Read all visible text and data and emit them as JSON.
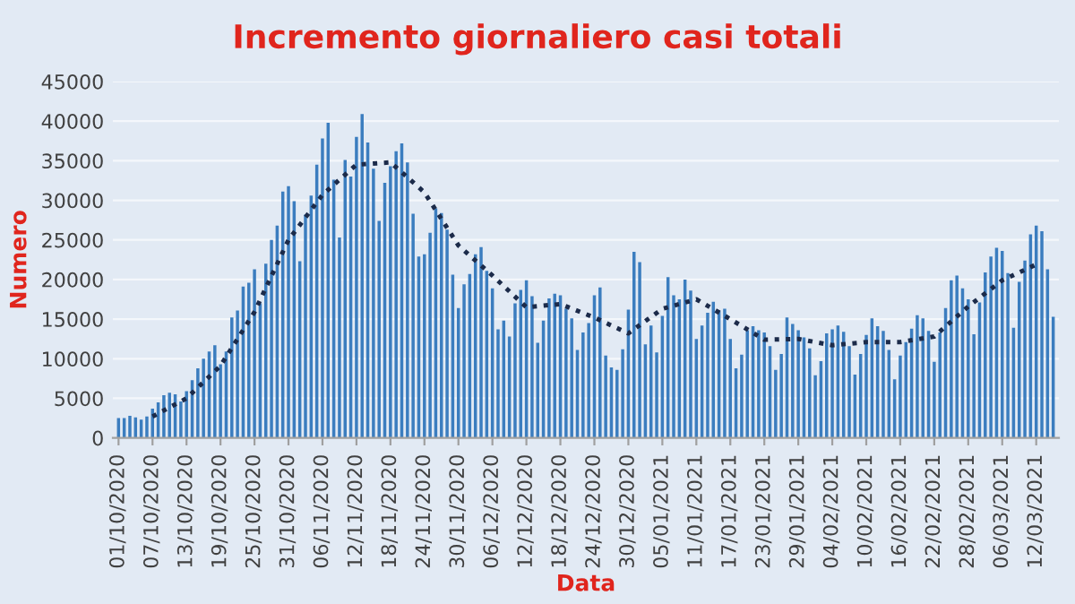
{
  "chart_data": {
    "type": "bar",
    "title": "Incremento giornaliero casi totali",
    "xlabel": "Data",
    "ylabel": "Numero",
    "categories": [
      "01/10/2020",
      null,
      null,
      null,
      null,
      null,
      "07/10/2020",
      null,
      null,
      null,
      null,
      null,
      "13/10/2020",
      null,
      null,
      null,
      null,
      null,
      "19/10/2020",
      null,
      null,
      null,
      null,
      null,
      "25/10/2020",
      null,
      null,
      null,
      null,
      null,
      "31/10/2020",
      null,
      null,
      null,
      null,
      null,
      "06/11/2020",
      null,
      null,
      null,
      null,
      null,
      "12/11/2020",
      null,
      null,
      null,
      null,
      null,
      "18/11/2020",
      null,
      null,
      null,
      null,
      null,
      "24/11/2020",
      null,
      null,
      null,
      null,
      null,
      "30/11/2020",
      null,
      null,
      null,
      null,
      null,
      "06/12/2020",
      null,
      null,
      null,
      null,
      null,
      "12/12/2020",
      null,
      null,
      null,
      null,
      null,
      "18/12/2020",
      null,
      null,
      null,
      null,
      null,
      "24/12/2020",
      null,
      null,
      null,
      null,
      null,
      "30/12/2020",
      null,
      null,
      null,
      null,
      null,
      "05/01/2021",
      null,
      null,
      null,
      null,
      null,
      "11/01/2021",
      null,
      null,
      null,
      null,
      null,
      "17/01/2021",
      null,
      null,
      null,
      null,
      null,
      "23/01/2021",
      null,
      null,
      null,
      null,
      null,
      "29/01/2021",
      null,
      null,
      null,
      null,
      null,
      "04/02/2021",
      null,
      null,
      null,
      null,
      null,
      "10/02/2021",
      null,
      null,
      null,
      null,
      null,
      "16/02/2021",
      null,
      null,
      null,
      null,
      null,
      "22/02/2021",
      null,
      null,
      null,
      null,
      null,
      "28/02/2021",
      null,
      null,
      null,
      null,
      null,
      "06/03/2021",
      null,
      null,
      null,
      null,
      null,
      "12/03/2021",
      null,
      null,
      null
    ],
    "series": [
      {
        "color": "#3b7dbf",
        "values": [
          2500,
          2500,
          2800,
          2600,
          2300,
          2700,
          3700,
          4500,
          5400,
          5700,
          5500,
          4600,
          5900,
          7300,
          8800,
          10000,
          10900,
          11700,
          9300,
          10900,
          15200,
          16100,
          19100,
          19600,
          21300,
          17000,
          22000,
          25000,
          26800,
          31100,
          31800,
          29900,
          22300,
          28200,
          30600,
          34500,
          37800,
          39800,
          32600,
          25300,
          35100,
          33000,
          38000,
          40900,
          37300,
          34000,
          27400,
          32200,
          34300,
          36200,
          37200,
          34800,
          28300,
          22900,
          23200,
          25900,
          29000,
          28400,
          26300,
          20600,
          16400,
          19400,
          20700,
          23200,
          24100,
          21100,
          18900,
          13700,
          14800,
          12800,
          17000,
          18700,
          19900,
          17900,
          12000,
          14800,
          17600,
          18200,
          18000,
          16300,
          15100,
          11100,
          13300,
          14500,
          18000,
          19000,
          10400,
          8900,
          8600,
          11200,
          16200,
          23500,
          22200,
          11800,
          14200,
          10800,
          15400,
          20300,
          18000,
          17500,
          20000,
          18600,
          12500,
          14200,
          15800,
          17200,
          16100,
          16300,
          12500,
          8800,
          10500,
          13600,
          14100,
          13600,
          13300,
          11600,
          8600,
          10600,
          15200,
          14400,
          13600,
          12700,
          11300,
          7900,
          9700,
          13200,
          13700,
          14200,
          13400,
          11600,
          8000,
          10600,
          13000,
          15100,
          14100,
          13500,
          11100,
          7400,
          10400,
          12100,
          13800,
          15500,
          15100,
          13500,
          9600,
          13300,
          16400,
          19900,
          20500,
          18900,
          17500,
          13100,
          17100,
          20900,
          22900,
          24000,
          23600,
          20800,
          13900,
          19700,
          22400,
          25700,
          26800,
          26100,
          21300,
          15300
        ]
      },
      {
        "type": "line",
        "color": "#1c2b4a",
        "line_style": "dotted",
        "x": [
          "07/10/2020",
          "13/10/2020",
          "19/10/2020",
          "25/10/2020",
          "31/10/2020",
          "06/11/2020",
          "12/11/2020",
          "18/11/2020",
          "24/11/2020",
          "30/11/2020",
          "06/12/2020",
          "12/12/2020",
          "18/12/2020",
          "24/12/2020",
          "30/12/2020",
          "05/01/2021",
          "11/01/2021",
          "17/01/2021",
          "23/01/2021",
          "29/01/2021",
          "04/02/2021",
          "10/02/2021",
          "16/02/2021",
          "22/02/2021",
          "28/02/2021",
          "06/03/2021",
          "12/03/2021"
        ],
        "values": [
          2700,
          5000,
          9100,
          15900,
          25000,
          30700,
          34500,
          34800,
          31000,
          24300,
          20500,
          16500,
          16900,
          15200,
          13200,
          16300,
          17500,
          15000,
          12400,
          12500,
          11700,
          12100,
          12100,
          12800,
          16600,
          19900,
          21900
        ]
      }
    ],
    "ylim": [
      0,
      45000
    ],
    "yticks": [
      0,
      5000,
      10000,
      15000,
      20000,
      25000,
      30000,
      35000,
      40000,
      45000
    ],
    "grid": "y",
    "legend": false
  }
}
